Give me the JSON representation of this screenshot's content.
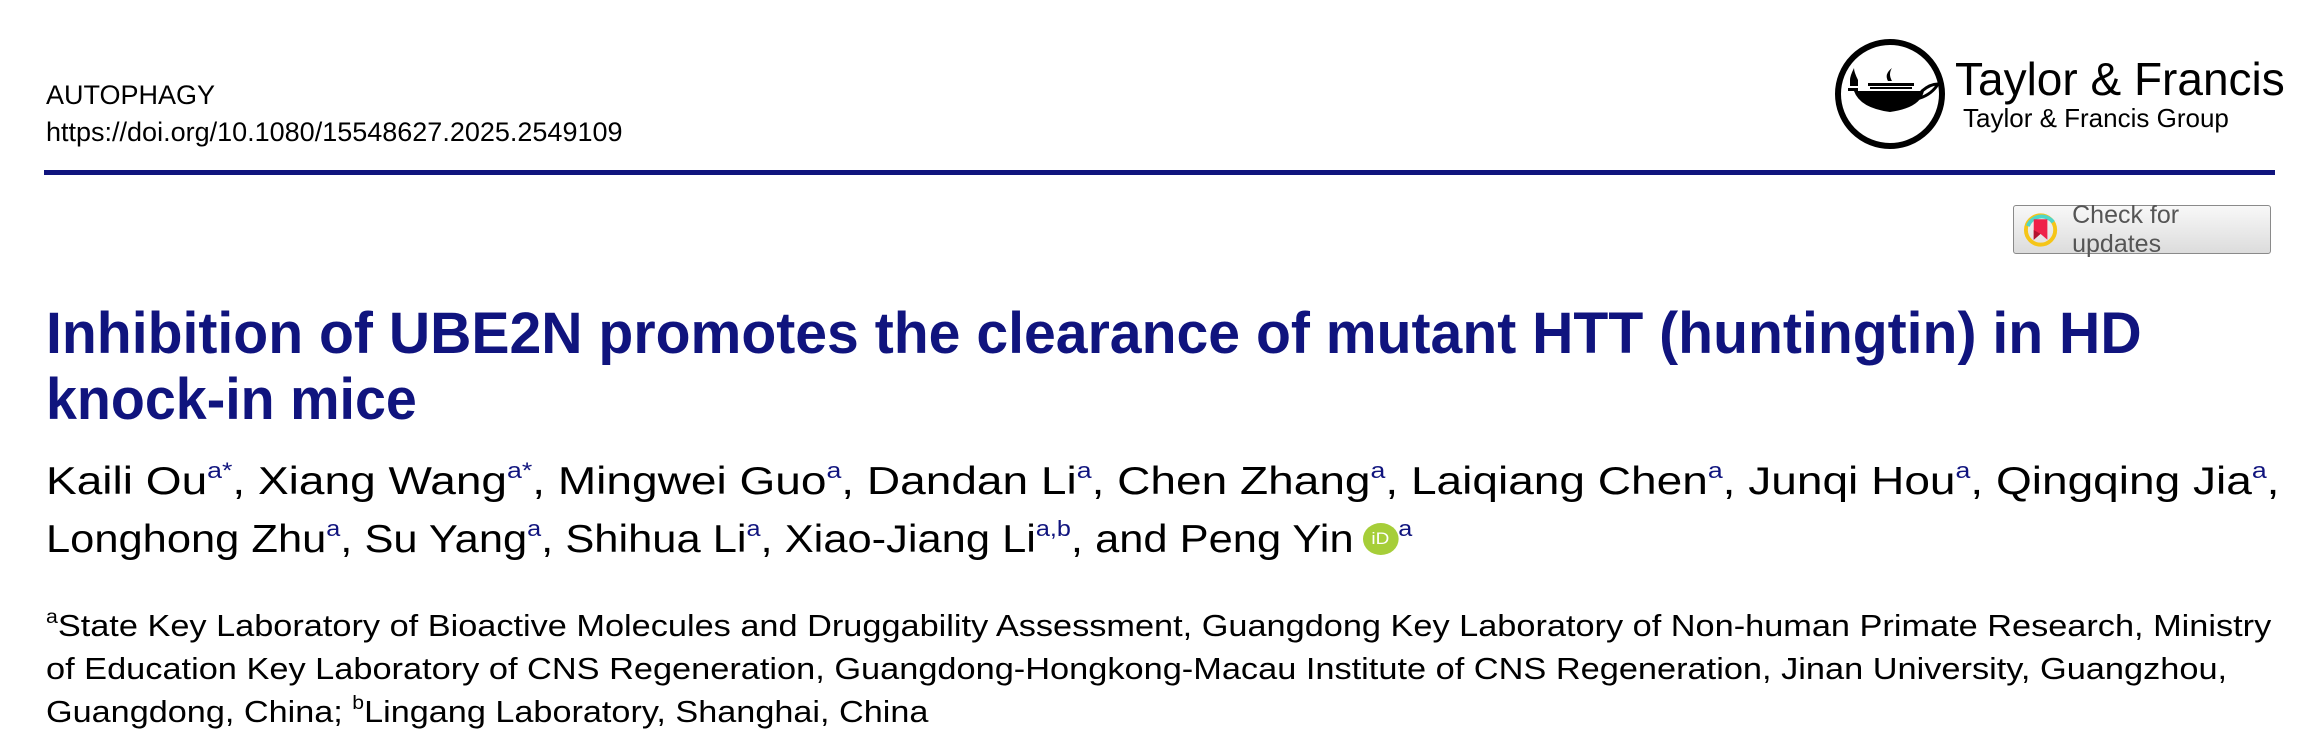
{
  "header": {
    "journal": "AUTOPHAGY",
    "doi": "https://doi.org/10.1080/15548627.2025.2549109",
    "publisher": "Taylor & Francis",
    "publisher_group": "Taylor & Francis Group",
    "check_updates_label": "Check for updates",
    "accent_color": "#10147e"
  },
  "title_lines": [
    "Inhibition of UBE2N promotes the clearance of mutant HTT (huntingtin) in HD",
    "knock-in mice"
  ],
  "authors": {
    "line1": [
      {
        "name": "Kaili Ou",
        "sup": "a*",
        "sep": ", "
      },
      {
        "name": "Xiang Wang",
        "sup": "a*",
        "sep": ", "
      },
      {
        "name": "Mingwei Guo",
        "sup": "a",
        "sep": ", "
      },
      {
        "name": "Dandan Li",
        "sup": "a",
        "sep": ", "
      },
      {
        "name": "Chen Zhang",
        "sup": "a",
        "sep": ", "
      },
      {
        "name": "Laiqiang Chen",
        "sup": "a",
        "sep": ", "
      },
      {
        "name": "Junqi Hou",
        "sup": "a",
        "sep": ", "
      },
      {
        "name": "Qingqing Jia",
        "sup": "a",
        "sep": ","
      }
    ],
    "line2": [
      {
        "name": "Longhong Zhu",
        "sup": "a",
        "sep": ", "
      },
      {
        "name": "Su Yang",
        "sup": "a",
        "sep": ", "
      },
      {
        "name": "Shihua Li",
        "sup": "a",
        "sep": ", "
      },
      {
        "name": "Xiao-Jiang Li",
        "sup": "a,b",
        "sep": ", "
      }
    ],
    "last": {
      "prefix": "and ",
      "name": "Peng Yin",
      "orcid": "iD",
      "sup": "a"
    }
  },
  "affiliations": {
    "line1": {
      "sup": "a",
      "text": "State Key Laboratory of Bioactive Molecules and Druggability Assessment, Guangdong Key Laboratory of Non-human Primate Research, Ministry"
    },
    "line2": "of Education Key Laboratory of CNS Regeneration, Guangdong-Hongkong-Macau Institute of CNS Regeneration, Jinan University, Guangzhou,",
    "line3": {
      "text": "Guangdong, China; ",
      "sup": "b",
      "text2": "Lingang Laboratory, Shanghai, China"
    }
  }
}
